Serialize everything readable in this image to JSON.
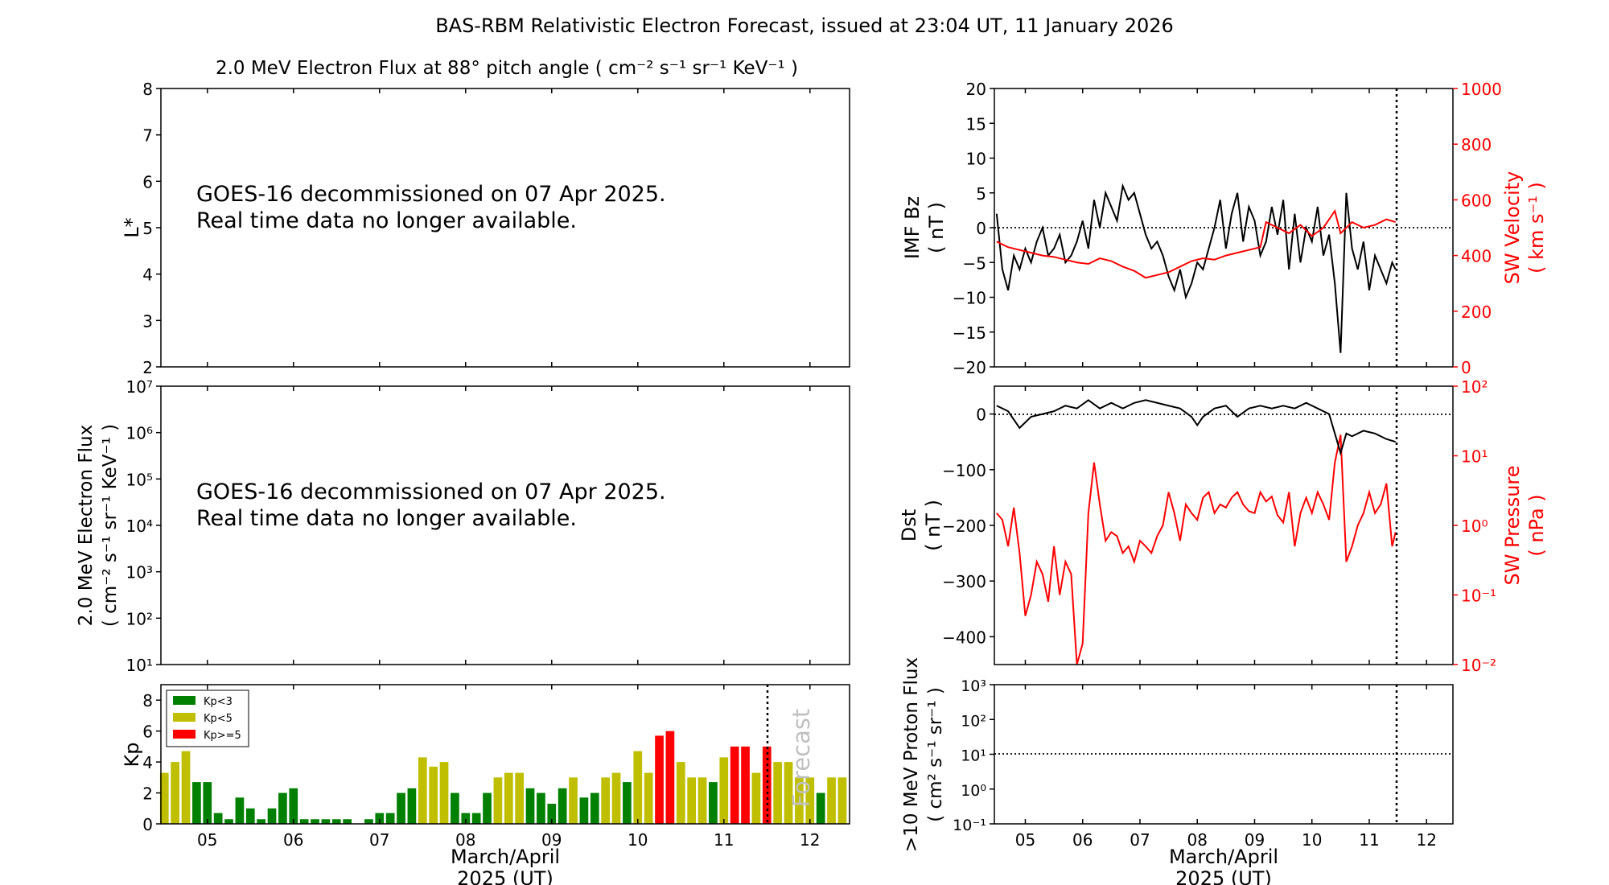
{
  "figure": {
    "title": "BAS-RBM Relativistic Electron Forecast, issued at 23:04 UT, 11 January 2026",
    "x_day_ticks": [
      "05",
      "06",
      "07",
      "08",
      "09",
      "10",
      "11",
      "12"
    ],
    "xlabel_line1": "March/April",
    "xlabel_line2": "2025 (UT)"
  },
  "panels": {
    "lstar": {
      "title": "2.0 MeV Electron Flux at 88° pitch angle ( cm⁻² s⁻¹ sr⁻¹ KeV⁻¹ )",
      "ylabel": "L*",
      "yticks": [
        "2",
        "3",
        "4",
        "5",
        "6",
        "7",
        "8"
      ],
      "message_line1": "GOES-16 decommissioned on 07 Apr 2025.",
      "message_line2": "Real time data no longer available."
    },
    "flux": {
      "ylabel_line1": "2.0 MeV Electron Flux",
      "ylabel_line2": "( cm⁻² s⁻¹ sr⁻¹ KeV⁻¹ )",
      "yticks": [
        "10¹",
        "10²",
        "10³",
        "10⁴",
        "10⁵",
        "10⁶",
        "10⁷"
      ],
      "message_line1": "GOES-16 decommissioned on 07 Apr 2025.",
      "message_line2": "Real time data no longer available."
    },
    "imf": {
      "ylabel_left_line1": "IMF Bz",
      "ylabel_left_line2": "( nT )",
      "ylabel_right_line1": "SW Velocity",
      "ylabel_right_line2": "( km s⁻¹ )",
      "yticks_left": [
        "−20",
        "−15",
        "−10",
        "−5",
        "0",
        "5",
        "10",
        "15",
        "20"
      ],
      "yticks_right": [
        "0",
        "200",
        "400",
        "600",
        "800",
        "1000"
      ]
    },
    "dst": {
      "ylabel_left_line1": "Dst",
      "ylabel_left_line2": "( nT )",
      "ylabel_right_line1": "SW Pressure",
      "ylabel_right_line2": "( nPa )",
      "yticks_left": [
        "−400",
        "−300",
        "−200",
        "−100",
        "0"
      ],
      "yticks_right": [
        "10⁻²",
        "10⁻¹",
        "10⁰",
        "10¹",
        "10²"
      ]
    },
    "kp": {
      "ylabel": "Kp",
      "yticks": [
        "0",
        "2",
        "4",
        "6",
        "8"
      ],
      "forecast_label": "Forecast",
      "legend": [
        {
          "label": "Kp<3",
          "color": "#008000"
        },
        {
          "label": "Kp<5",
          "color": "#bfbf00"
        },
        {
          "label": "Kp>=5",
          "color": "#ff0000"
        }
      ]
    },
    "proton": {
      "ylabel_line1": ">10 MeV Proton Flux",
      "ylabel_line2": "( cm² s⁻¹ sr⁻¹ )",
      "yticks": [
        "10⁻¹",
        "10⁰",
        "10¹",
        "10²",
        "10³"
      ]
    }
  },
  "chart_data": [
    {
      "type": "bar",
      "name": "kp",
      "ylabel": "Kp",
      "ylim": [
        0,
        9
      ],
      "xlim": [
        4.46,
        12.46
      ],
      "x_unit": "day",
      "bar_width_days": 0.1,
      "forecast_start_day": 11.46,
      "x_start_day": 4.5,
      "step_days": 0.125,
      "values": [
        3.3,
        4.0,
        4.7,
        2.7,
        2.7,
        0.7,
        0.3,
        1.7,
        1.0,
        0.3,
        1.0,
        2.0,
        2.3,
        0.3,
        0.3,
        0.3,
        0.3,
        0.3,
        0.0,
        0.3,
        0.7,
        0.7,
        2.0,
        2.3,
        4.3,
        3.7,
        4.0,
        2.0,
        0.7,
        0.7,
        2.0,
        3.0,
        3.3,
        3.3,
        2.3,
        2.0,
        1.3,
        2.3,
        3.0,
        1.7,
        2.0,
        3.0,
        3.3,
        2.7,
        4.7,
        3.3,
        5.7,
        6.0,
        4.0,
        3.0,
        3.0,
        2.7,
        4.3,
        5.0,
        5.0,
        3.3,
        5.0,
        4.0,
        4.0,
        3.0,
        3.0,
        2.0,
        3.0,
        3.0
      ],
      "thresholds": {
        "green_below": 3,
        "red_at_or_above": 5
      },
      "grid": false,
      "legend_placement": "top-left"
    },
    {
      "type": "line",
      "name": "imf_bz_and_sw_velocity",
      "xlim": [
        4.46,
        12.46
      ],
      "now_marker_day": 11.46,
      "series": [
        {
          "name": "IMF Bz",
          "color": "#000000",
          "axis": "left",
          "ylim": [
            -20,
            20
          ],
          "x": [
            4.5,
            4.6,
            4.7,
            4.8,
            4.9,
            5.0,
            5.1,
            5.2,
            5.3,
            5.4,
            5.5,
            5.6,
            5.7,
            5.8,
            5.9,
            6.0,
            6.1,
            6.2,
            6.3,
            6.4,
            6.5,
            6.6,
            6.7,
            6.8,
            6.9,
            7.0,
            7.1,
            7.2,
            7.3,
            7.4,
            7.5,
            7.6,
            7.7,
            7.8,
            7.9,
            8.0,
            8.1,
            8.2,
            8.3,
            8.4,
            8.5,
            8.6,
            8.7,
            8.8,
            8.9,
            9.0,
            9.1,
            9.2,
            9.3,
            9.4,
            9.5,
            9.6,
            9.7,
            9.8,
            9.9,
            10.0,
            10.1,
            10.2,
            10.3,
            10.4,
            10.5,
            10.6,
            10.7,
            10.8,
            10.9,
            11.0,
            11.1,
            11.2,
            11.3,
            11.4,
            11.46
          ],
          "values": [
            2,
            -6,
            -9,
            -4,
            -6,
            -3,
            -5,
            -2,
            0,
            -4,
            -3,
            -1,
            -5,
            -4,
            -2,
            1,
            -3,
            4,
            0,
            5,
            3,
            1,
            6,
            4,
            5,
            2,
            -1,
            -3,
            -2,
            -4,
            -7,
            -9,
            -6,
            -10,
            -8,
            -5,
            -6,
            -3,
            0,
            4,
            -3,
            2,
            5,
            -2,
            3,
            1,
            -4,
            -2,
            3,
            -1,
            4,
            -6,
            2,
            -5,
            0,
            -2,
            3,
            -4,
            -1,
            -8,
            -18,
            5,
            -3,
            -6,
            -2,
            -9,
            -4,
            -6,
            -8,
            -5,
            -6
          ]
        },
        {
          "name": "SW Velocity",
          "color": "#ff0000",
          "axis": "right",
          "ylim": [
            0,
            1000
          ],
          "x": [
            4.5,
            4.7,
            4.9,
            5.1,
            5.3,
            5.5,
            5.7,
            5.9,
            6.1,
            6.3,
            6.5,
            6.7,
            6.9,
            7.1,
            7.3,
            7.5,
            7.7,
            7.9,
            8.1,
            8.3,
            8.5,
            8.7,
            8.9,
            9.1,
            9.2,
            9.4,
            9.6,
            9.8,
            10.0,
            10.2,
            10.4,
            10.5,
            10.7,
            10.9,
            11.1,
            11.3,
            11.46
          ],
          "values": [
            450,
            430,
            420,
            410,
            400,
            395,
            385,
            375,
            370,
            390,
            380,
            360,
            345,
            320,
            330,
            340,
            360,
            380,
            390,
            385,
            400,
            410,
            420,
            430,
            520,
            500,
            480,
            510,
            470,
            500,
            560,
            480,
            520,
            500,
            510,
            530,
            520
          ]
        }
      ]
    },
    {
      "type": "line",
      "name": "dst_and_sw_pressure",
      "xlim": [
        4.46,
        12.46
      ],
      "now_marker_day": 11.46,
      "series": [
        {
          "name": "Dst",
          "color": "#000000",
          "axis": "left",
          "ylim": [
            -450,
            50
          ],
          "x": [
            4.5,
            4.7,
            4.9,
            5.1,
            5.3,
            5.5,
            5.7,
            5.9,
            6.1,
            6.3,
            6.5,
            6.7,
            6.9,
            7.1,
            7.3,
            7.5,
            7.7,
            7.9,
            8.0,
            8.1,
            8.3,
            8.5,
            8.7,
            8.9,
            9.1,
            9.3,
            9.5,
            9.7,
            9.9,
            10.1,
            10.3,
            10.5,
            10.6,
            10.7,
            10.9,
            11.1,
            11.3,
            11.46
          ],
          "values": [
            15,
            5,
            -25,
            -5,
            0,
            5,
            15,
            10,
            25,
            10,
            20,
            10,
            20,
            25,
            20,
            15,
            10,
            -5,
            -20,
            -5,
            10,
            15,
            -5,
            10,
            15,
            10,
            15,
            10,
            20,
            10,
            0,
            -70,
            -35,
            -40,
            -30,
            -35,
            -45,
            -50
          ]
        },
        {
          "name": "SW Pressure",
          "color": "#ff0000",
          "axis": "right",
          "scale": "log",
          "ylim": [
            0.01,
            100
          ],
          "x": [
            4.5,
            4.6,
            4.7,
            4.8,
            4.9,
            5.0,
            5.1,
            5.2,
            5.3,
            5.4,
            5.5,
            5.6,
            5.7,
            5.8,
            5.9,
            6.0,
            6.1,
            6.2,
            6.3,
            6.4,
            6.5,
            6.6,
            6.7,
            6.8,
            6.9,
            7.0,
            7.1,
            7.2,
            7.3,
            7.4,
            7.5,
            7.6,
            7.7,
            7.8,
            7.9,
            8.0,
            8.1,
            8.2,
            8.3,
            8.4,
            8.5,
            8.6,
            8.7,
            8.8,
            8.9,
            9.0,
            9.1,
            9.2,
            9.3,
            9.4,
            9.5,
            9.6,
            9.7,
            9.8,
            9.9,
            10.0,
            10.1,
            10.2,
            10.3,
            10.4,
            10.5,
            10.6,
            10.7,
            10.8,
            10.9,
            11.0,
            11.1,
            11.2,
            11.3,
            11.4,
            11.46
          ],
          "values": [
            1.5,
            1.2,
            0.5,
            1.8,
            0.4,
            0.05,
            0.1,
            0.3,
            0.2,
            0.08,
            0.5,
            0.1,
            0.3,
            0.2,
            0.01,
            0.02,
            1.5,
            8,
            2,
            0.6,
            0.8,
            0.7,
            0.4,
            0.5,
            0.3,
            0.6,
            0.5,
            0.4,
            0.7,
            1.0,
            3,
            1.5,
            0.6,
            2,
            1.5,
            1.2,
            2.5,
            3,
            1.5,
            2,
            1.8,
            2.5,
            3,
            2,
            1.6,
            1.5,
            3,
            2.2,
            2.6,
            1.4,
            1.1,
            3,
            0.5,
            1.5,
            2.5,
            1.5,
            3,
            2,
            1.2,
            8,
            20,
            0.3,
            0.5,
            1.0,
            1.5,
            3,
            1.5,
            2,
            4,
            0.5,
            0.8
          ]
        }
      ]
    },
    {
      "type": "line",
      "name": "proton_flux",
      "xlim": [
        4.46,
        12.46
      ],
      "ylim": [
        0.1,
        1000
      ],
      "scale": "log",
      "threshold_value": 10,
      "now_marker_day": 11.46,
      "series": []
    }
  ]
}
